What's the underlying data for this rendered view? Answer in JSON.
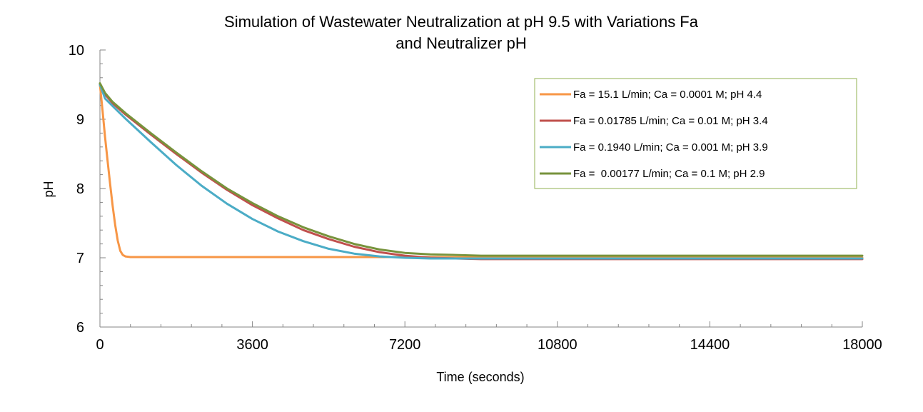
{
  "chart_data": {
    "type": "line",
    "title_line1": "Simulation of Wastewater Neutralization at pH 9.5 with Variations Fa",
    "title_line2": "and Neutralizer pH",
    "xlabel": "Time (seconds)",
    "ylabel": "pH",
    "xlim": [
      0,
      18000
    ],
    "ylim": [
      6,
      10
    ],
    "x_ticks": [
      0,
      3600,
      7200,
      10800,
      14400,
      18000
    ],
    "x_tick_labels": [
      "0",
      "3600",
      "7200",
      "10800",
      "14400",
      "18000"
    ],
    "y_ticks": [
      6,
      7,
      8,
      9,
      10
    ],
    "y_tick_labels": [
      "6",
      "7",
      "8",
      "9",
      "10"
    ],
    "grid": false,
    "legend_position": "top-right",
    "series": [
      {
        "name": "Fa = 15.1 L/min; Ca = 0.0001 M; pH 4.4",
        "color": "#F79646",
        "x": [
          0,
          60,
          120,
          180,
          240,
          300,
          360,
          420,
          480,
          540,
          600,
          720,
          900,
          1200,
          3600,
          7200,
          10800,
          14400,
          18000
        ],
        "y": [
          9.5,
          9.13,
          8.75,
          8.4,
          8.07,
          7.75,
          7.47,
          7.25,
          7.1,
          7.04,
          7.02,
          7.01,
          7.01,
          7.01,
          7.01,
          7.01,
          7.0,
          7.0,
          7.0
        ]
      },
      {
        "name": "Fa = 0.01785 L/min; Ca = 0.01 M; pH 3.4",
        "color": "#C0504D",
        "x": [
          0,
          120,
          300,
          600,
          1200,
          1800,
          2400,
          3000,
          3600,
          4200,
          4800,
          5400,
          6000,
          6600,
          7200,
          7800,
          8400,
          9000,
          9600,
          10800,
          12000,
          14400,
          18000
        ],
        "y": [
          9.5,
          9.36,
          9.23,
          9.07,
          8.78,
          8.5,
          8.23,
          7.98,
          7.76,
          7.57,
          7.4,
          7.27,
          7.16,
          7.08,
          7.03,
          7.0,
          6.99,
          6.98,
          6.98,
          6.98,
          6.98,
          6.98,
          6.98
        ]
      },
      {
        "name": "Fa = 0.1940 L/min; Ca = 0.001 M; pH 3.9",
        "color": "#4BACC6",
        "x": [
          0,
          120,
          300,
          600,
          1200,
          1800,
          2400,
          3000,
          3600,
          4200,
          4800,
          5400,
          6000,
          6600,
          7200,
          7800,
          8400,
          9000,
          10800,
          14400,
          18000
        ],
        "y": [
          9.5,
          9.3,
          9.19,
          9.01,
          8.67,
          8.34,
          8.04,
          7.78,
          7.56,
          7.38,
          7.24,
          7.13,
          7.06,
          7.02,
          7.0,
          6.99,
          6.99,
          6.99,
          6.99,
          6.99,
          6.99
        ]
      },
      {
        "name": "Fa =  0.00177 L/min; Ca = 0.1 M; pH 2.9",
        "color": "#77933C",
        "x": [
          0,
          120,
          300,
          600,
          1200,
          1800,
          2400,
          3000,
          3600,
          4200,
          4800,
          5400,
          6000,
          6600,
          7200,
          7800,
          8400,
          9000,
          9600,
          10800,
          12000,
          14400,
          18000
        ],
        "y": [
          9.52,
          9.38,
          9.25,
          9.09,
          8.8,
          8.52,
          8.25,
          8.0,
          7.79,
          7.6,
          7.44,
          7.31,
          7.2,
          7.12,
          7.07,
          7.05,
          7.04,
          7.03,
          7.03,
          7.03,
          7.03,
          7.03,
          7.03
        ]
      }
    ]
  }
}
